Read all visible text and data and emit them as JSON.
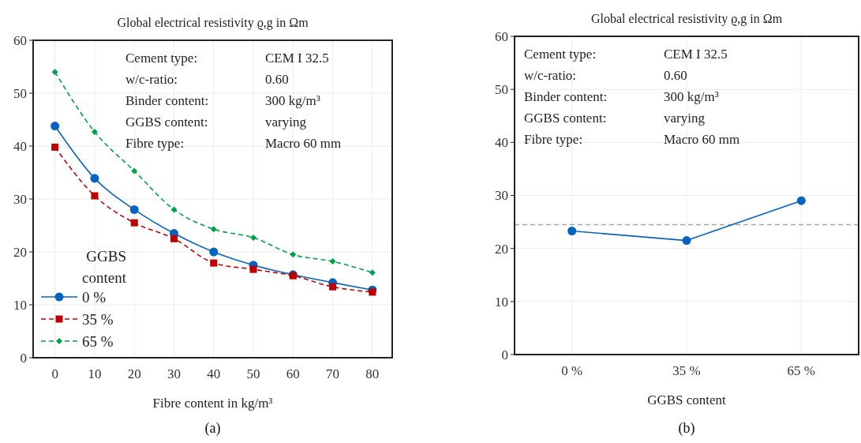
{
  "chart_data": [
    {
      "type": "line",
      "title": "Global electrical resistivity ϱ,g in Ωm",
      "xlabel": "Fibre content in kg/m³",
      "x": [
        0,
        10,
        20,
        30,
        40,
        50,
        60,
        70,
        80
      ],
      "xlim": [
        -5.5,
        85
      ],
      "xticks": [
        0,
        10,
        20,
        30,
        40,
        50,
        60,
        70,
        80
      ],
      "ylim": [
        0,
        60
      ],
      "yticks": [
        0,
        10,
        20,
        30,
        40,
        50,
        60
      ],
      "grid": true,
      "legend": "bottom left",
      "legend_title": "GGBS content",
      "series": [
        {
          "name": "0 %",
          "color": "#0563c1",
          "marker": "circle",
          "line_style": "solid",
          "values": [
            43.8,
            33.9,
            28,
            23.5,
            20,
            17.5,
            15.7,
            14.2,
            12.8
          ]
        },
        {
          "name": "35 %",
          "color": "#c00000",
          "marker": "square",
          "line_style": "dashed",
          "values": [
            39.8,
            30.6,
            25.5,
            22.5,
            17.9,
            16.7,
            15.5,
            13.4,
            12.4
          ]
        },
        {
          "name": "65 %",
          "color": "#00a14b",
          "marker": "diamond",
          "line_style": "dashed",
          "values": [
            54,
            42.7,
            35.3,
            28,
            24.3,
            22.7,
            19.5,
            18.2,
            16.1
          ]
        }
      ],
      "annotations": [
        "Cement type: CEM I 32.5",
        "w/c-ratio: 0.60",
        "Binder content: 300 kg/m³",
        "GGBS content: varying",
        "Fibre type: Macro 60 mm",
        "(a)"
      ]
    },
    {
      "type": "line",
      "title": "Global electrical resistivity ϱ,g in Ωm",
      "xlabel": "GGBS content",
      "categories": [
        "0 %",
        "35 %",
        "65 %"
      ],
      "values": [
        23.3,
        21.5,
        29.0
      ],
      "color": "#0563c1",
      "marker": "circle",
      "line_style": "solid",
      "ylim": [
        0,
        60
      ],
      "yticks": [
        0,
        10,
        20,
        30,
        40,
        50,
        60
      ],
      "grid": true,
      "ref_lines": [
        {
          "axis": "y",
          "value": 24.5,
          "color": "#a6a6a6",
          "line_style": "dashed"
        }
      ],
      "annotations": [
        "Cement type: CEM I 32.5",
        "w/c-ratio: 0.60",
        "Binder content: 300 kg/m³",
        "GGBS content: varying",
        "Fibre type: Macro 60 mm",
        "(b)"
      ]
    }
  ]
}
